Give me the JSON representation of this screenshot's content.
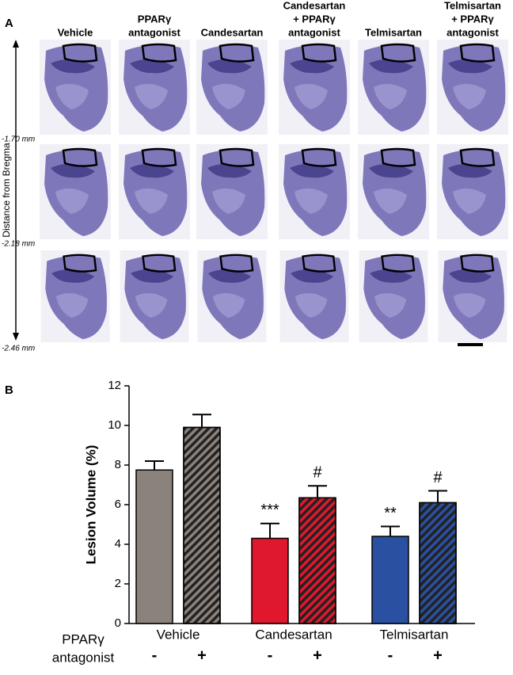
{
  "panel_a": {
    "label": "A",
    "columns": [
      [
        "Vehicle"
      ],
      [
        "PPARγ",
        "antagonist"
      ],
      [
        "Candesartan"
      ],
      [
        "Candesartan",
        "+ PPARγ",
        "antagonist"
      ],
      [
        "Telmisartan"
      ],
      [
        "Telmisartan",
        "+ PPARγ",
        "antagonist"
      ]
    ],
    "axis_label": "Distance from Bregma",
    "rows": [
      "-1.70 mm",
      "-2.18 mm",
      "-2.46 mm"
    ]
  },
  "chart_data": {
    "type": "bar",
    "panel_label": "B",
    "y_label": "Lesion Volume (%)",
    "groups": [
      "Vehicle",
      "Candesartan",
      "Telmisartan"
    ],
    "row_label": [
      "PPARγ",
      "antagonist"
    ],
    "categories": [
      "-",
      "+",
      "-",
      "+",
      "-",
      "+"
    ],
    "values": [
      7.75,
      9.9,
      4.3,
      6.35,
      4.4,
      6.1
    ],
    "errors": [
      0.45,
      0.65,
      0.75,
      0.6,
      0.5,
      0.6
    ],
    "colors": [
      "#8b827c",
      "#8b827c",
      "#e0182d",
      "#e0182d",
      "#2a50a2",
      "#2a50a2"
    ],
    "hatched": [
      false,
      true,
      false,
      true,
      false,
      true
    ],
    "annotations": [
      null,
      null,
      "***",
      "#",
      "**",
      "#"
    ],
    "ylim": [
      0,
      12
    ],
    "yticks": [
      0,
      2,
      4,
      6,
      8,
      10,
      12
    ]
  }
}
